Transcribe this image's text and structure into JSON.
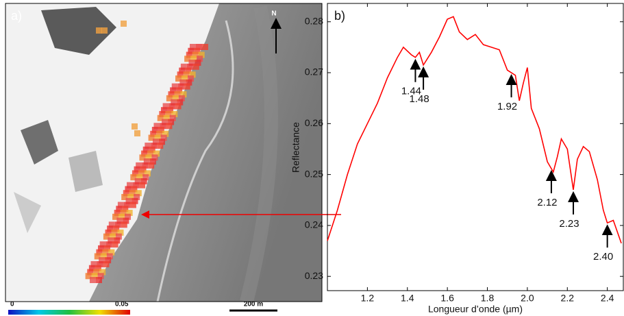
{
  "panel_a": {
    "label": "a)",
    "north": "N",
    "scale_bar": "200 m",
    "colorbar": {
      "min": 0,
      "max": 0.05
    }
  },
  "chart_data": {
    "type": "line",
    "panel_label": "b)",
    "y_label": "Reflectance",
    "x_label": "Longueur d’onde (µm)",
    "color": "#ff0000",
    "x": [
      1.0,
      1.05,
      1.1,
      1.15,
      1.2,
      1.25,
      1.3,
      1.35,
      1.38,
      1.42,
      1.44,
      1.46,
      1.48,
      1.52,
      1.56,
      1.6,
      1.63,
      1.66,
      1.7,
      1.74,
      1.78,
      1.82,
      1.86,
      1.9,
      1.94,
      1.96,
      1.98,
      2.0,
      2.02,
      2.06,
      2.1,
      2.13,
      2.15,
      2.17,
      2.2,
      2.23,
      2.25,
      2.28,
      2.31,
      2.35,
      2.38,
      2.4,
      2.43,
      2.47
    ],
    "values": [
      0.237,
      0.243,
      0.25,
      0.256,
      0.26,
      0.264,
      0.269,
      0.273,
      0.275,
      0.2735,
      0.273,
      0.274,
      0.2715,
      0.274,
      0.277,
      0.2805,
      0.281,
      0.278,
      0.2765,
      0.2775,
      0.2755,
      0.275,
      0.2745,
      0.2705,
      0.2695,
      0.2645,
      0.268,
      0.271,
      0.263,
      0.259,
      0.2525,
      0.2505,
      0.2535,
      0.257,
      0.255,
      0.247,
      0.253,
      0.2555,
      0.2545,
      0.249,
      0.243,
      0.2405,
      0.241,
      0.2365
    ],
    "xlim": [
      1.0,
      2.48
    ],
    "ylim": [
      0.2272,
      0.2836
    ],
    "xticks": [
      1.2,
      1.4,
      1.6,
      1.8,
      {
        "value": 2,
        "label": "2.0"
      },
      2.2,
      2.4
    ],
    "yticks": [
      0.23,
      0.24,
      0.25,
      0.26,
      0.27,
      0.28
    ],
    "annotations": [
      1.44,
      1.48,
      1.92,
      2.12,
      2.23,
      {
        "value": 2.4,
        "label": "2.40"
      }
    ]
  }
}
